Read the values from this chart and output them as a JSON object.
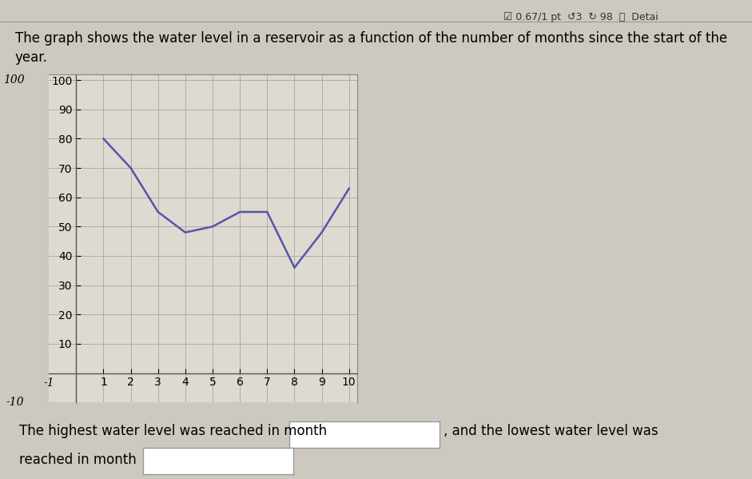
{
  "title_line1": "The graph shows the water level in a reservoir as a function of the number of months since the start of the",
  "title_line2": "year.",
  "x": [
    1,
    2,
    3,
    4,
    5,
    6,
    7,
    8,
    9,
    10
  ],
  "y": [
    80,
    70,
    55,
    48,
    50,
    55,
    55,
    36,
    48,
    63
  ],
  "line_color": "#5555aa",
  "line_width": 1.8,
  "xlim": [
    -1,
    10.3
  ],
  "ylim": [
    -10,
    102
  ],
  "xticks": [
    1,
    2,
    3,
    4,
    5,
    6,
    7,
    8,
    9,
    10
  ],
  "yticks": [
    10,
    20,
    30,
    40,
    50,
    60,
    70,
    80,
    90,
    100
  ],
  "ytick_labels": [
    "10",
    "20",
    "30",
    "40",
    "50",
    "60",
    "70",
    "80",
    "90",
    "100"
  ],
  "background_color": "#cdc9c0",
  "plot_bg_color": "#dedad2",
  "grid_color": "#b0aca4",
  "footer_text1": "The highest water level was reached in month",
  "footer_text2": ", and the lowest water level was",
  "footer_text3": "reached in month",
  "header_text": "☑ 0.67/1 pt  ↺3  ↻ 98  ⓘ  Detai",
  "title_fontsize": 12,
  "tick_fontsize": 10,
  "footer_fontsize": 12
}
